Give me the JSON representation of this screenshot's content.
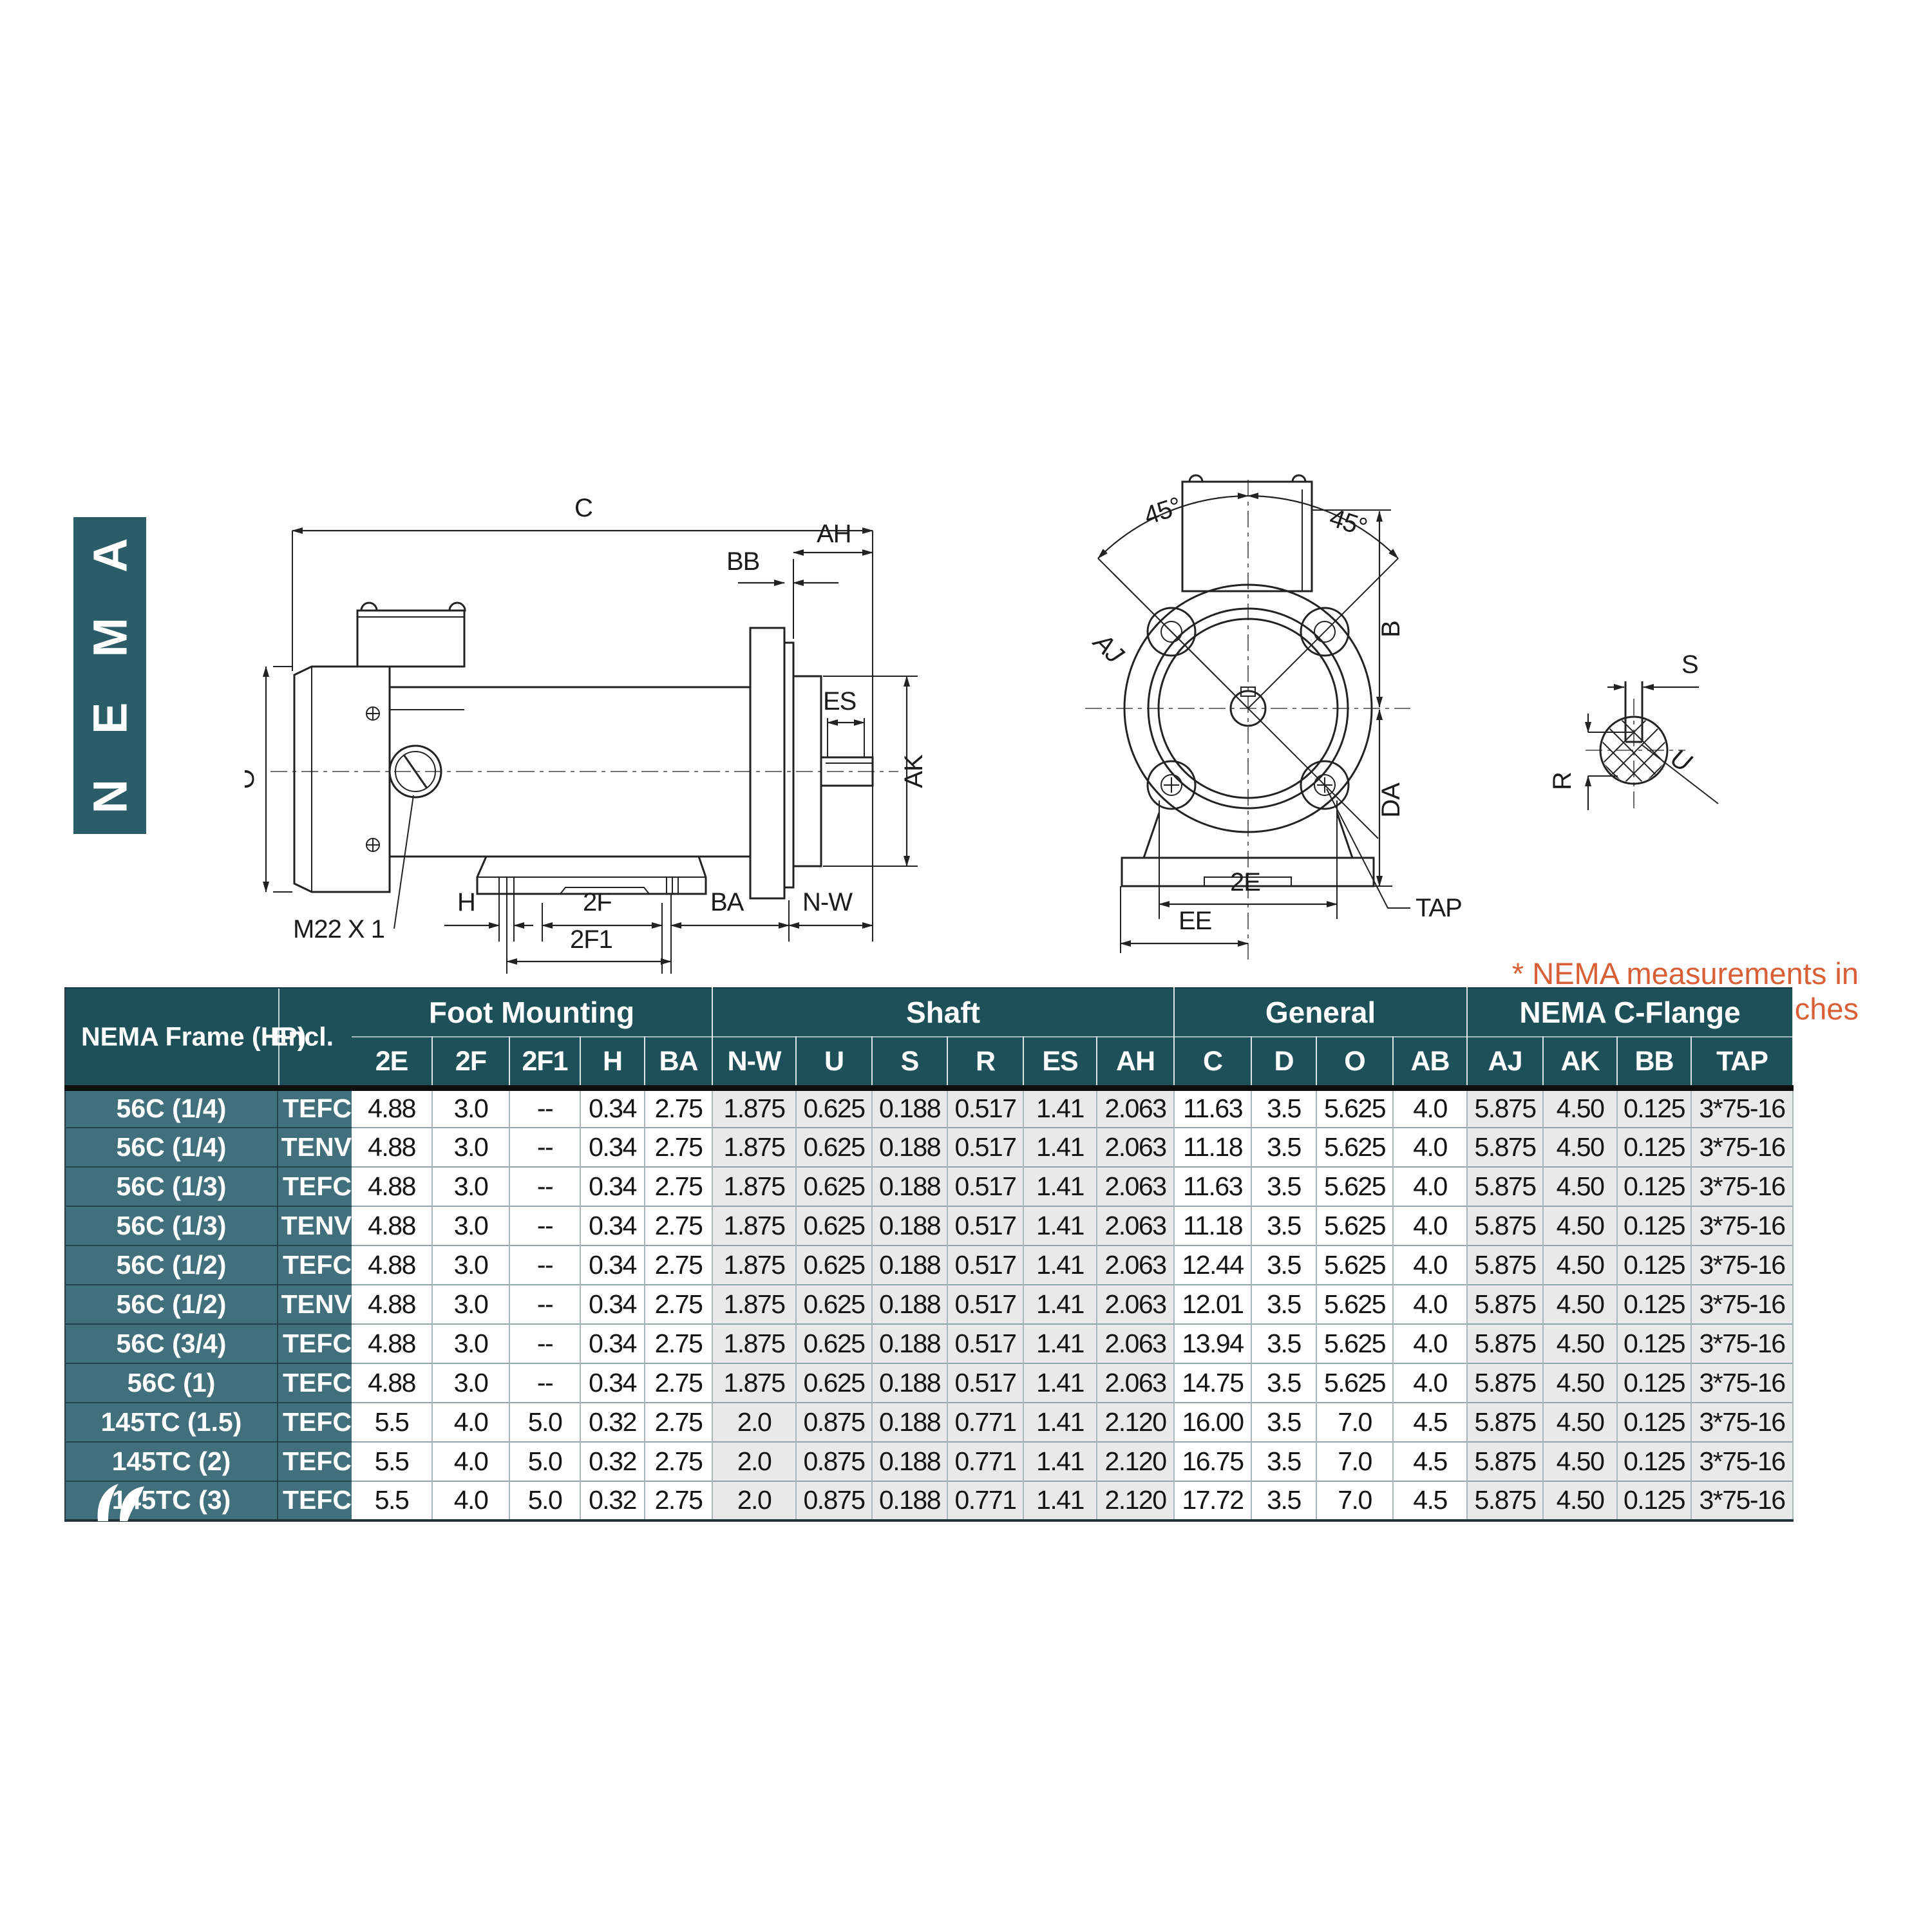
{
  "sidebar": {
    "label": "NEMA"
  },
  "note": "* NEMA measurements in inches",
  "colors": {
    "teal_header": "#1d5059",
    "teal_row": "#41707c",
    "teal_sidebar": "#2b5d68",
    "gray_cell": "#e9e9e9",
    "note_orange": "#d85f36"
  },
  "diagrams": {
    "side": {
      "c": "C",
      "ah": "AH",
      "bb": "BB",
      "es": "ES",
      "ak": "AK",
      "o": "O",
      "gland": "M22 X 1",
      "h": "H",
      "f2": "2F",
      "f21": "2F1",
      "ba": "BA",
      "nw": "N-W"
    },
    "front": {
      "a45l": "45°",
      "a45r": "45°",
      "aj": "AJ",
      "b": "B",
      "da": "DA",
      "e2": "2E",
      "ee": "EE",
      "tap": "TAP"
    },
    "shaft": {
      "s": "S",
      "u": "U",
      "r": "R"
    }
  },
  "table": {
    "corner": {
      "frame": "NEMA Frame (HP)",
      "encl": "Encl."
    },
    "groups": [
      {
        "label": "Foot Mounting",
        "span": 5
      },
      {
        "label": "Shaft",
        "span": 6
      },
      {
        "label": "General",
        "span": 4
      },
      {
        "label": "NEMA C-Flange",
        "span": 4
      }
    ],
    "columns": [
      "2E",
      "2F",
      "2F1",
      "H",
      "BA",
      "N-W",
      "U",
      "S",
      "R",
      "ES",
      "AH",
      "C",
      "D",
      "O",
      "AB",
      "AJ",
      "AK",
      "BB",
      "TAP"
    ],
    "rows": [
      {
        "frame": "56C (1/4)",
        "encl": "TEFC",
        "values": [
          "4.88",
          "3.0",
          "--",
          "0.34",
          "2.75",
          "1.875",
          "0.625",
          "0.188",
          "0.517",
          "1.41",
          "2.063",
          "11.63",
          "3.5",
          "5.625",
          "4.0",
          "5.875",
          "4.50",
          "0.125",
          "3*75-16"
        ]
      },
      {
        "frame": "56C (1/4)",
        "encl": "TENV",
        "values": [
          "4.88",
          "3.0",
          "--",
          "0.34",
          "2.75",
          "1.875",
          "0.625",
          "0.188",
          "0.517",
          "1.41",
          "2.063",
          "11.18",
          "3.5",
          "5.625",
          "4.0",
          "5.875",
          "4.50",
          "0.125",
          "3*75-16"
        ]
      },
      {
        "frame": "56C (1/3)",
        "encl": "TEFC",
        "values": [
          "4.88",
          "3.0",
          "--",
          "0.34",
          "2.75",
          "1.875",
          "0.625",
          "0.188",
          "0.517",
          "1.41",
          "2.063",
          "11.63",
          "3.5",
          "5.625",
          "4.0",
          "5.875",
          "4.50",
          "0.125",
          "3*75-16"
        ]
      },
      {
        "frame": "56C (1/3)",
        "encl": "TENV",
        "values": [
          "4.88",
          "3.0",
          "--",
          "0.34",
          "2.75",
          "1.875",
          "0.625",
          "0.188",
          "0.517",
          "1.41",
          "2.063",
          "11.18",
          "3.5",
          "5.625",
          "4.0",
          "5.875",
          "4.50",
          "0.125",
          "3*75-16"
        ]
      },
      {
        "frame": "56C (1/2)",
        "encl": "TEFC",
        "values": [
          "4.88",
          "3.0",
          "--",
          "0.34",
          "2.75",
          "1.875",
          "0.625",
          "0.188",
          "0.517",
          "1.41",
          "2.063",
          "12.44",
          "3.5",
          "5.625",
          "4.0",
          "5.875",
          "4.50",
          "0.125",
          "3*75-16"
        ]
      },
      {
        "frame": "56C (1/2)",
        "encl": "TENV",
        "values": [
          "4.88",
          "3.0",
          "--",
          "0.34",
          "2.75",
          "1.875",
          "0.625",
          "0.188",
          "0.517",
          "1.41",
          "2.063",
          "12.01",
          "3.5",
          "5.625",
          "4.0",
          "5.875",
          "4.50",
          "0.125",
          "3*75-16"
        ]
      },
      {
        "frame": "56C (3/4)",
        "encl": "TEFC",
        "values": [
          "4.88",
          "3.0",
          "--",
          "0.34",
          "2.75",
          "1.875",
          "0.625",
          "0.188",
          "0.517",
          "1.41",
          "2.063",
          "13.94",
          "3.5",
          "5.625",
          "4.0",
          "5.875",
          "4.50",
          "0.125",
          "3*75-16"
        ]
      },
      {
        "frame": "56C (1)",
        "encl": "TEFC",
        "values": [
          "4.88",
          "3.0",
          "--",
          "0.34",
          "2.75",
          "1.875",
          "0.625",
          "0.188",
          "0.517",
          "1.41",
          "2.063",
          "14.75",
          "3.5",
          "5.625",
          "4.0",
          "5.875",
          "4.50",
          "0.125",
          "3*75-16"
        ]
      },
      {
        "frame": "145TC (1.5)",
        "encl": "TEFC",
        "values": [
          "5.5",
          "4.0",
          "5.0",
          "0.32",
          "2.75",
          "2.0",
          "0.875",
          "0.188",
          "0.771",
          "1.41",
          "2.120",
          "16.00",
          "3.5",
          "7.0",
          "4.5",
          "5.875",
          "4.50",
          "0.125",
          "3*75-16"
        ]
      },
      {
        "frame": "145TC (2)",
        "encl": "TEFC",
        "values": [
          "5.5",
          "4.0",
          "5.0",
          "0.32",
          "2.75",
          "2.0",
          "0.875",
          "0.188",
          "0.771",
          "1.41",
          "2.120",
          "16.75",
          "3.5",
          "7.0",
          "4.5",
          "5.875",
          "4.50",
          "0.125",
          "3*75-16"
        ]
      },
      {
        "frame": "145TC (3)",
        "encl": "TEFC",
        "values": [
          "5.5",
          "4.0",
          "5.0",
          "0.32",
          "2.75",
          "2.0",
          "0.875",
          "0.188",
          "0.771",
          "1.41",
          "2.120",
          "17.72",
          "3.5",
          "7.0",
          "4.5",
          "5.875",
          "4.50",
          "0.125",
          "3*75-16"
        ]
      }
    ]
  }
}
